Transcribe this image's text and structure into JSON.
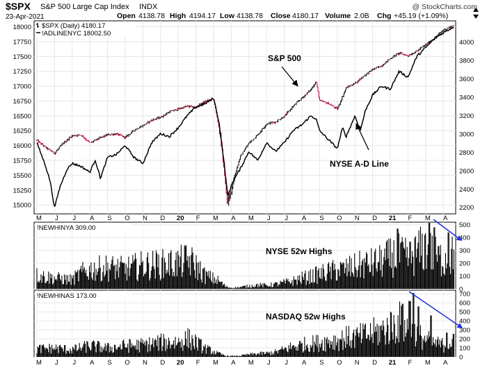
{
  "header": {
    "symbol": "$SPX",
    "name": "S&P 500 Large Cap Index",
    "exchange": "INDX",
    "date": "23-Apr-2021",
    "open_label": "Open",
    "open": "4138.78",
    "high_label": "High",
    "high": "4194.17",
    "low_label": "Low",
    "low": "4138.78",
    "close_label": "Close",
    "close": "4180.17",
    "volume_label": "Volume",
    "volume": "2.0B",
    "chg_label": "Chg",
    "chg": "+45.19 (+1.09%)",
    "watermark": "@ StockCharts.com"
  },
  "chart_data": [
    {
      "type": "line",
      "panel": "price",
      "legend": [
        {
          "name": "$SPX (Daily) 4180.17",
          "color": "#000000",
          "style": "bar"
        },
        {
          "name": "!ADLINENYC 18002.50",
          "color": "#000000",
          "style": "line"
        }
      ],
      "left_axis": {
        "ticks": [
          "18000",
          "17750",
          "17500",
          "17250",
          "17000",
          "16750",
          "16500",
          "16250",
          "16000",
          "15750",
          "15500",
          "15250",
          "15000"
        ],
        "range": [
          14850,
          18100
        ],
        "series": "!ADLINENYC"
      },
      "right_axis": {
        "ticks": [
          "4000",
          "3800",
          "3600",
          "3400",
          "3200",
          "3000",
          "2800",
          "2600",
          "2400",
          "2200"
        ],
        "range": [
          2130,
          4230
        ],
        "series": "$SPX"
      },
      "months": [
        "M",
        "J",
        "J",
        "A",
        "S",
        "O",
        "N",
        "D",
        "20",
        "F",
        "M",
        "A",
        "M",
        "J",
        "J",
        "A",
        "S",
        "O",
        "N",
        "D",
        "21",
        "F",
        "M",
        "A"
      ],
      "month_bold": [
        false,
        false,
        false,
        false,
        false,
        false,
        false,
        false,
        true,
        false,
        false,
        false,
        false,
        false,
        false,
        false,
        false,
        false,
        false,
        false,
        true,
        false,
        false,
        false
      ],
      "series": [
        {
          "name": "$SPX",
          "axis": "right",
          "points": [
            [
              0,
              2930
            ],
            [
              0.5,
              2850
            ],
            [
              1,
              2790
            ],
            [
              1.5,
              2900
            ],
            [
              2,
              2980
            ],
            [
              2.5,
              2990
            ],
            [
              3,
              2900
            ],
            [
              3.5,
              2950
            ],
            [
              4,
              2990
            ],
            [
              4.5,
              3000
            ],
            [
              5,
              2960
            ],
            [
              5.5,
              3040
            ],
            [
              6,
              3090
            ],
            [
              6.5,
              3150
            ],
            [
              7,
              3180
            ],
            [
              7.5,
              3240
            ],
            [
              8,
              3270
            ],
            [
              8.5,
              3300
            ],
            [
              9,
              3290
            ],
            [
              9.5,
              3350
            ],
            [
              10,
              3380
            ],
            [
              10.35,
              3020
            ],
            [
              10.6,
              2600
            ],
            [
              10.8,
              2230
            ],
            [
              11.1,
              2480
            ],
            [
              11.5,
              2750
            ],
            [
              12,
              2900
            ],
            [
              12.5,
              2990
            ],
            [
              13,
              3110
            ],
            [
              13.5,
              3130
            ],
            [
              14,
              3190
            ],
            [
              14.5,
              3300
            ],
            [
              15,
              3390
            ],
            [
              15.5,
              3480
            ],
            [
              15.8,
              3570
            ],
            [
              16,
              3360
            ],
            [
              16.5,
              3330
            ],
            [
              17,
              3270
            ],
            [
              17.5,
              3500
            ],
            [
              18,
              3550
            ],
            [
              18.5,
              3630
            ],
            [
              19,
              3700
            ],
            [
              19.5,
              3740
            ],
            [
              20,
              3820
            ],
            [
              20.5,
              3880
            ],
            [
              21,
              3850
            ],
            [
              21.5,
              3900
            ],
            [
              22,
              3970
            ],
            [
              22.5,
              4040
            ],
            [
              23,
              4130
            ],
            [
              23.6,
              4180
            ]
          ]
        },
        {
          "name": "!ADLINENYC",
          "axis": "left",
          "points": [
            [
              0,
              16050
            ],
            [
              0.5,
              15650
            ],
            [
              0.75,
              15400
            ],
            [
              1,
              14950
            ],
            [
              1.3,
              15300
            ],
            [
              1.7,
              15600
            ],
            [
              2,
              15700
            ],
            [
              2.5,
              15650
            ],
            [
              3,
              15550
            ],
            [
              3.3,
              15760
            ],
            [
              3.6,
              15450
            ],
            [
              4,
              15800
            ],
            [
              4.5,
              15850
            ],
            [
              5,
              16000
            ],
            [
              5.5,
              15800
            ],
            [
              6,
              15700
            ],
            [
              6.5,
              16050
            ],
            [
              7,
              16200
            ],
            [
              7.5,
              16150
            ],
            [
              8,
              16300
            ],
            [
              8.5,
              16500
            ],
            [
              9,
              16650
            ],
            [
              9.5,
              16700
            ],
            [
              10,
              16800
            ],
            [
              10.3,
              16400
            ],
            [
              10.6,
              15700
            ],
            [
              10.8,
              15150
            ],
            [
              11.1,
              15400
            ],
            [
              11.5,
              15600
            ],
            [
              12,
              15900
            ],
            [
              12.5,
              15750
            ],
            [
              13,
              16050
            ],
            [
              13.5,
              15900
            ],
            [
              14,
              16050
            ],
            [
              14.5,
              16250
            ],
            [
              15,
              16350
            ],
            [
              15.5,
              16500
            ],
            [
              15.8,
              16450
            ],
            [
              16,
              16250
            ],
            [
              16.5,
              16100
            ],
            [
              17,
              15950
            ],
            [
              17.3,
              16300
            ],
            [
              17.5,
              16150
            ],
            [
              18,
              16500
            ],
            [
              18.3,
              16250
            ],
            [
              18.6,
              16600
            ],
            [
              19,
              16850
            ],
            [
              19.5,
              17000
            ],
            [
              20,
              16950
            ],
            [
              20.5,
              17250
            ],
            [
              21,
              17150
            ],
            [
              21.5,
              17500
            ],
            [
              22,
              17650
            ],
            [
              22.5,
              17800
            ],
            [
              23,
              17900
            ],
            [
              23.6,
              18000
            ]
          ]
        }
      ],
      "annotations": [
        {
          "text": "S&P 500",
          "x": 15.8,
          "y": 3700,
          "axis": "right",
          "arrow_to": [
            15.8,
            3480
          ]
        },
        {
          "text": "NYSE A-D Line",
          "x": 18.5,
          "y": 2600,
          "axis": "right",
          "arrow_to": [
            18.2,
            2960
          ]
        }
      ]
    },
    {
      "type": "bar",
      "panel": "nyse",
      "legend": "!NEWHINYA 309.00",
      "title": "NYSE 52w Highs",
      "ticks": [
        "500",
        "400",
        "300",
        "200",
        "100",
        "0"
      ],
      "range": [
        0,
        520
      ],
      "profile": [
        [
          0,
          120
        ],
        [
          1,
          95
        ],
        [
          2,
          80
        ],
        [
          2.5,
          140
        ],
        [
          3,
          170
        ],
        [
          4,
          190
        ],
        [
          5,
          175
        ],
        [
          6,
          210
        ],
        [
          7,
          215
        ],
        [
          8,
          230
        ],
        [
          8.6,
          255
        ],
        [
          9,
          205
        ],
        [
          9.5,
          120
        ],
        [
          10.3,
          70
        ],
        [
          10.7,
          20
        ],
        [
          11,
          10
        ],
        [
          11.5,
          15
        ],
        [
          12,
          25
        ],
        [
          12.5,
          35
        ],
        [
          13,
          30
        ],
        [
          13.5,
          40
        ],
        [
          14,
          55
        ],
        [
          14.5,
          70
        ],
        [
          15,
          95
        ],
        [
          15.5,
          110
        ],
        [
          16,
          130
        ],
        [
          16.5,
          150
        ],
        [
          17,
          165
        ],
        [
          17.5,
          175
        ],
        [
          18,
          195
        ],
        [
          18.5,
          215
        ],
        [
          19,
          225
        ],
        [
          19.5,
          245
        ],
        [
          20,
          280
        ],
        [
          20.5,
          300
        ],
        [
          21,
          270
        ],
        [
          21.5,
          320
        ],
        [
          22,
          370
        ],
        [
          22.5,
          290
        ],
        [
          23,
          260
        ],
        [
          23.6,
          300
        ]
      ],
      "peaks": [
        [
          22.2,
          515
        ],
        [
          22.5,
          480
        ],
        [
          23.3,
          440
        ],
        [
          20.4,
          470
        ]
      ],
      "arrow": {
        "from": [
          22.2,
          570
        ],
        "to": [
          24.3,
          420
        ]
      }
    },
    {
      "type": "bar",
      "panel": "nasdaq",
      "legend": "!NEWHINAS 173.00",
      "title": "NASDAQ 52w Highs",
      "ticks": [
        "700",
        "600",
        "500",
        "400",
        "300",
        "200",
        "100",
        "0"
      ],
      "range": [
        0,
        740
      ],
      "profile": [
        [
          0,
          100
        ],
        [
          1,
          110
        ],
        [
          2,
          90
        ],
        [
          3,
          140
        ],
        [
          4,
          110
        ],
        [
          5,
          140
        ],
        [
          6,
          150
        ],
        [
          7,
          180
        ],
        [
          8,
          190
        ],
        [
          8.6,
          230
        ],
        [
          9,
          180
        ],
        [
          9.5,
          110
        ],
        [
          10.3,
          40
        ],
        [
          10.7,
          15
        ],
        [
          11,
          10
        ],
        [
          11.5,
          15
        ],
        [
          12,
          30
        ],
        [
          12.5,
          40
        ],
        [
          13,
          45
        ],
        [
          13.5,
          60
        ],
        [
          14,
          95
        ],
        [
          14.5,
          130
        ],
        [
          15,
          150
        ],
        [
          15.5,
          170
        ],
        [
          16,
          180
        ],
        [
          16.5,
          200
        ],
        [
          17,
          210
        ],
        [
          17.5,
          240
        ],
        [
          18,
          245
        ],
        [
          18.5,
          270
        ],
        [
          19,
          300
        ],
        [
          19.5,
          330
        ],
        [
          20,
          380
        ],
        [
          20.5,
          440
        ],
        [
          21,
          340
        ],
        [
          21.5,
          280
        ],
        [
          22,
          220
        ],
        [
          22.5,
          170
        ],
        [
          23,
          150
        ],
        [
          23.6,
          190
        ]
      ],
      "peaks": [
        [
          21.3,
          710
        ],
        [
          21.1,
          620
        ],
        [
          21.6,
          560
        ],
        [
          20.7,
          590
        ],
        [
          22.3,
          460
        ],
        [
          23.2,
          270
        ]
      ],
      "arrow": {
        "from": [
          21.3,
          740
        ],
        "to": [
          24.3,
          300
        ]
      }
    }
  ]
}
